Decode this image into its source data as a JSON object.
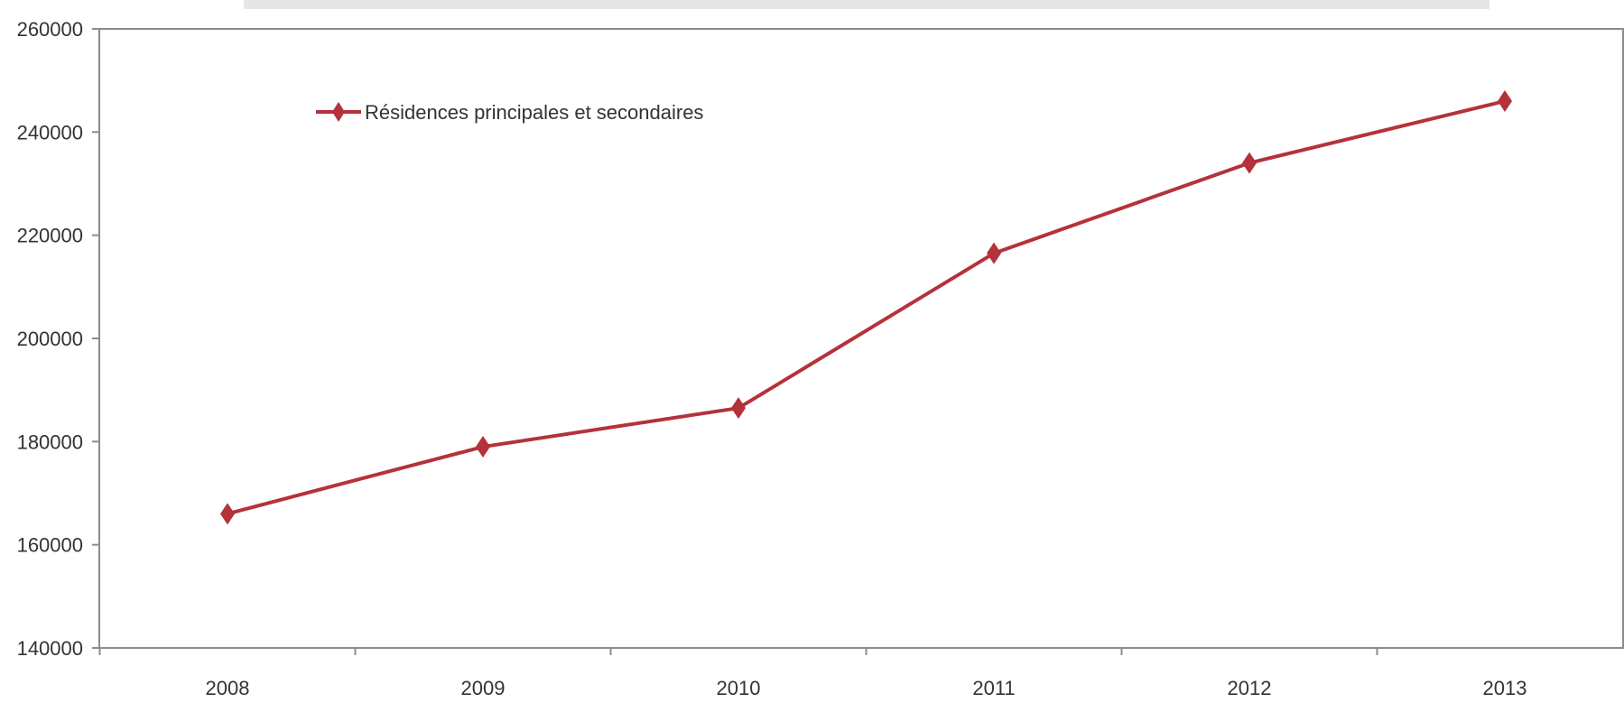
{
  "chart_data": {
    "type": "line",
    "title": "",
    "xlabel": "",
    "ylabel": "",
    "categories": [
      "2008",
      "2009",
      "2010",
      "2011",
      "2012",
      "2013"
    ],
    "series": [
      {
        "name": "Résidences principales et secondaires",
        "values": [
          166000,
          179000,
          186500,
          216500,
          234000,
          246000
        ],
        "color": "#b5323a",
        "marker": "diamond"
      }
    ],
    "ylim": [
      140000,
      260000
    ],
    "yticks": [
      140000,
      160000,
      180000,
      200000,
      220000,
      240000,
      260000
    ],
    "ytick_labels": [
      "140000",
      "160000",
      "180000",
      "200000",
      "220000",
      "240000",
      "260000"
    ],
    "grid": false,
    "legend_position": "top-left",
    "colors": {
      "axis": "#8c8c8c",
      "line": "#b5323a",
      "text": "#333333"
    }
  }
}
